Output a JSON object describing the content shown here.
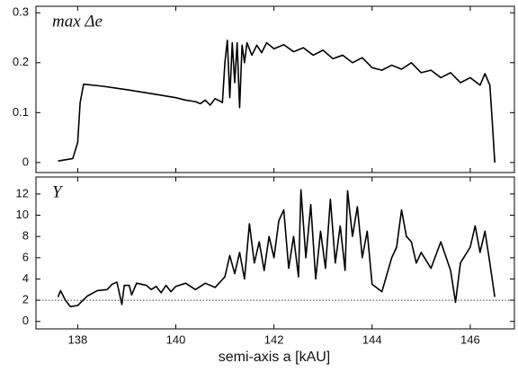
{
  "chart_data": [
    {
      "type": "line",
      "annotation": "max Δe",
      "x": [
        137.6,
        137.9,
        138.0,
        138.05,
        138.12,
        138.5,
        139.0,
        139.5,
        140.0,
        140.2,
        140.4,
        140.5,
        140.6,
        140.7,
        140.8,
        140.9,
        140.95,
        141.0,
        141.05,
        141.1,
        141.15,
        141.2,
        141.25,
        141.3,
        141.35,
        141.4,
        141.45,
        141.55,
        141.65,
        141.75,
        141.85,
        142.0,
        142.2,
        142.4,
        142.6,
        142.8,
        143.0,
        143.2,
        143.4,
        143.6,
        143.8,
        144.0,
        144.2,
        144.4,
        144.6,
        144.8,
        145.0,
        145.2,
        145.4,
        145.6,
        145.8,
        146.0,
        146.2,
        146.3,
        146.4,
        146.45,
        146.5
      ],
      "values": [
        0.003,
        0.008,
        0.04,
        0.12,
        0.157,
        0.153,
        0.146,
        0.138,
        0.13,
        0.125,
        0.122,
        0.118,
        0.125,
        0.115,
        0.128,
        0.123,
        0.12,
        0.2,
        0.245,
        0.13,
        0.24,
        0.16,
        0.24,
        0.11,
        0.235,
        0.2,
        0.24,
        0.215,
        0.235,
        0.22,
        0.24,
        0.228,
        0.236,
        0.222,
        0.23,
        0.215,
        0.225,
        0.208,
        0.215,
        0.2,
        0.21,
        0.19,
        0.185,
        0.195,
        0.187,
        0.2,
        0.18,
        0.185,
        0.17,
        0.18,
        0.16,
        0.17,
        0.155,
        0.178,
        0.155,
        0.08,
        0.0
      ],
      "color": "#000000",
      "xlim": [
        137.15,
        146.9
      ],
      "ylim": [
        -0.02,
        0.313
      ],
      "yticks": [
        0,
        0.1,
        0.2,
        0.3
      ]
    },
    {
      "type": "line",
      "annotation": "Y",
      "x_label": "semi-axis a [kAU]",
      "x": [
        137.6,
        137.65,
        137.75,
        137.85,
        138.0,
        138.2,
        138.4,
        138.6,
        138.7,
        138.8,
        138.9,
        138.95,
        139.05,
        139.1,
        139.2,
        139.4,
        139.5,
        139.6,
        139.7,
        139.8,
        139.9,
        140.0,
        140.2,
        140.4,
        140.6,
        140.8,
        141.0,
        141.1,
        141.2,
        141.3,
        141.4,
        141.5,
        141.6,
        141.7,
        141.8,
        141.9,
        142.0,
        142.1,
        142.2,
        142.3,
        142.4,
        142.5,
        142.55,
        142.65,
        142.75,
        142.85,
        142.95,
        143.05,
        143.15,
        143.25,
        143.35,
        143.45,
        143.5,
        143.6,
        143.7,
        143.8,
        143.9,
        144.0,
        144.2,
        144.4,
        144.5,
        144.6,
        144.7,
        144.8,
        144.9,
        145.0,
        145.2,
        145.4,
        145.6,
        145.7,
        145.8,
        146.0,
        146.1,
        146.2,
        146.3,
        146.4,
        146.5
      ],
      "values": [
        2.3,
        2.9,
        2.0,
        1.4,
        1.5,
        2.4,
        2.9,
        3.0,
        3.5,
        3.7,
        1.6,
        3.4,
        3.4,
        2.5,
        3.6,
        3.4,
        3.0,
        3.3,
        2.7,
        3.4,
        2.8,
        3.3,
        3.6,
        3.0,
        3.6,
        3.2,
        4.2,
        6.2,
        4.5,
        6.5,
        4.0,
        9.2,
        5.5,
        7.5,
        4.8,
        8.0,
        6.0,
        9.5,
        10.5,
        5.0,
        8.0,
        4.2,
        12.4,
        6.0,
        11.0,
        4.0,
        8.5,
        5.0,
        11.5,
        5.5,
        9.0,
        4.8,
        12.3,
        8.0,
        10.8,
        6.0,
        8.5,
        3.5,
        2.8,
        6.0,
        7.0,
        10.5,
        8.0,
        7.5,
        5.5,
        6.5,
        5.0,
        7.5,
        4.8,
        1.8,
        5.5,
        7.0,
        9.0,
        6.5,
        8.5,
        5.5,
        2.3
      ],
      "color": "#000000",
      "reference_line": 2,
      "xlim": [
        137.15,
        146.9
      ],
      "ylim": [
        -0.7,
        13.6
      ],
      "xticks": [
        138,
        140,
        142,
        144,
        146
      ],
      "yticks": [
        0,
        2,
        4,
        6,
        8,
        10,
        12
      ]
    }
  ]
}
